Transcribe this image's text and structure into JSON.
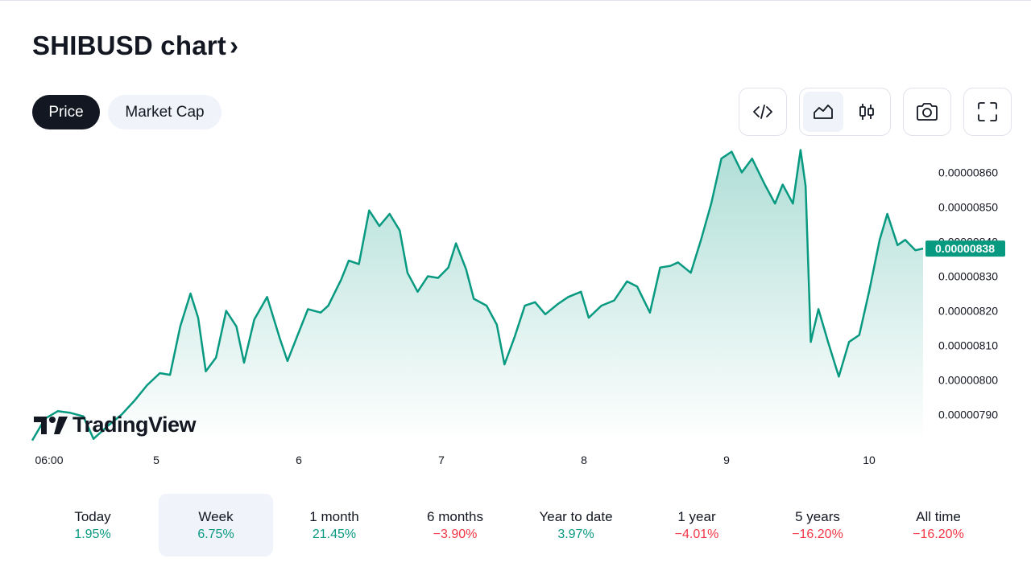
{
  "header": {
    "title": "SHIBUSD chart",
    "chevron": "›"
  },
  "tabs": [
    {
      "label": "Price",
      "active": true
    },
    {
      "label": "Market Cap",
      "active": false
    }
  ],
  "toolbar": {
    "embed_icon": "code-icon",
    "line_icon": "area-chart-icon",
    "candle_icon": "candlestick-icon",
    "snapshot_icon": "camera-icon",
    "fullscreen_icon": "fullscreen-icon"
  },
  "branding": {
    "logo_text": "TradingView"
  },
  "chart_data": {
    "type": "area",
    "x_ticks": [
      "06:00",
      "5",
      "6",
      "7",
      "8",
      "9",
      "10"
    ],
    "y_ticks": [
      "0.00000860",
      "0.00000850",
      "0.00000840",
      "0.00000830",
      "0.00000820",
      "0.00000810",
      "0.00000800",
      "0.00000790"
    ],
    "last_price_label": "0.00000838",
    "ylim": [
      7.82e-06,
      8.68e-06
    ],
    "colors": {
      "line": "#089981",
      "fill_top": "#089981",
      "label_bg": "#089981"
    },
    "series": [
      {
        "x": 0,
        "y": 7.825e-06
      },
      {
        "x": 0.5,
        "y": 7.888e-06
      },
      {
        "x": 1,
        "y": 7.91e-06
      },
      {
        "x": 1.5,
        "y": 7.905e-06
      },
      {
        "x": 2,
        "y": 7.895e-06
      },
      {
        "x": 2.4,
        "y": 7.83e-06
      },
      {
        "x": 3,
        "y": 7.87e-06
      },
      {
        "x": 3.5,
        "y": 7.9e-06
      },
      {
        "x": 4,
        "y": 7.94e-06
      },
      {
        "x": 4.5,
        "y": 7.985e-06
      },
      {
        "x": 5,
        "y": 8.02e-06
      },
      {
        "x": 5.4,
        "y": 8.015e-06
      },
      {
        "x": 5.8,
        "y": 8.155e-06
      },
      {
        "x": 6.2,
        "y": 8.25e-06
      },
      {
        "x": 6.5,
        "y": 8.18e-06
      },
      {
        "x": 6.8,
        "y": 8.025e-06
      },
      {
        "x": 7.2,
        "y": 8.065e-06
      },
      {
        "x": 7.6,
        "y": 8.2e-06
      },
      {
        "x": 8,
        "y": 8.155e-06
      },
      {
        "x": 8.3,
        "y": 8.05e-06
      },
      {
        "x": 8.7,
        "y": 8.175e-06
      },
      {
        "x": 9.2,
        "y": 8.24e-06
      },
      {
        "x": 9.7,
        "y": 8.12e-06
      },
      {
        "x": 10,
        "y": 8.055e-06
      },
      {
        "x": 10.4,
        "y": 8.13e-06
      },
      {
        "x": 10.8,
        "y": 8.205e-06
      },
      {
        "x": 11.3,
        "y": 8.195e-06
      },
      {
        "x": 11.6,
        "y": 8.215e-06
      },
      {
        "x": 12.1,
        "y": 8.29e-06
      },
      {
        "x": 12.4,
        "y": 8.345e-06
      },
      {
        "x": 12.8,
        "y": 8.335e-06
      },
      {
        "x": 13.2,
        "y": 8.49e-06
      },
      {
        "x": 13.6,
        "y": 8.445e-06
      },
      {
        "x": 14,
        "y": 8.48e-06
      },
      {
        "x": 14.4,
        "y": 8.432e-06
      },
      {
        "x": 14.7,
        "y": 8.31e-06
      },
      {
        "x": 15.1,
        "y": 8.255e-06
      },
      {
        "x": 15.5,
        "y": 8.3e-06
      },
      {
        "x": 15.9,
        "y": 8.295e-06
      },
      {
        "x": 16.3,
        "y": 8.325e-06
      },
      {
        "x": 16.6,
        "y": 8.395e-06
      },
      {
        "x": 17,
        "y": 8.32e-06
      },
      {
        "x": 17.3,
        "y": 8.235e-06
      },
      {
        "x": 17.8,
        "y": 8.215e-06
      },
      {
        "x": 18.2,
        "y": 8.16e-06
      },
      {
        "x": 18.5,
        "y": 8.045e-06
      },
      {
        "x": 18.9,
        "y": 8.125e-06
      },
      {
        "x": 19.3,
        "y": 8.215e-06
      },
      {
        "x": 19.7,
        "y": 8.225e-06
      },
      {
        "x": 20.1,
        "y": 8.19e-06
      },
      {
        "x": 20.6,
        "y": 8.22e-06
      },
      {
        "x": 21,
        "y": 8.24e-06
      },
      {
        "x": 21.5,
        "y": 8.255e-06
      },
      {
        "x": 21.8,
        "y": 8.18e-06
      },
      {
        "x": 22.3,
        "y": 8.215e-06
      },
      {
        "x": 22.8,
        "y": 8.23e-06
      },
      {
        "x": 23.3,
        "y": 8.285e-06
      },
      {
        "x": 23.7,
        "y": 8.27e-06
      },
      {
        "x": 24.2,
        "y": 8.195e-06
      },
      {
        "x": 24.6,
        "y": 8.325e-06
      },
      {
        "x": 25,
        "y": 8.33e-06
      },
      {
        "x": 25.3,
        "y": 8.34e-06
      },
      {
        "x": 25.8,
        "y": 8.31e-06
      },
      {
        "x": 26.2,
        "y": 8.405e-06
      },
      {
        "x": 26.6,
        "y": 8.51e-06
      },
      {
        "x": 27,
        "y": 8.64e-06
      },
      {
        "x": 27.4,
        "y": 8.66e-06
      },
      {
        "x": 27.8,
        "y": 8.6e-06
      },
      {
        "x": 28.2,
        "y": 8.64e-06
      },
      {
        "x": 28.7,
        "y": 8.565e-06
      },
      {
        "x": 29.1,
        "y": 8.51e-06
      },
      {
        "x": 29.4,
        "y": 8.565e-06
      },
      {
        "x": 29.8,
        "y": 8.51e-06
      },
      {
        "x": 30.1,
        "y": 8.665e-06
      },
      {
        "x": 30.3,
        "y": 8.56e-06
      },
      {
        "x": 30.5,
        "y": 8.11e-06
      },
      {
        "x": 30.8,
        "y": 8.205e-06
      },
      {
        "x": 31.2,
        "y": 8.105e-06
      },
      {
        "x": 31.6,
        "y": 8.01e-06
      },
      {
        "x": 32,
        "y": 8.11e-06
      },
      {
        "x": 32.4,
        "y": 8.13e-06
      },
      {
        "x": 32.8,
        "y": 8.26e-06
      },
      {
        "x": 33.2,
        "y": 8.405e-06
      },
      {
        "x": 33.5,
        "y": 8.48e-06
      },
      {
        "x": 33.9,
        "y": 8.39e-06
      },
      {
        "x": 34.2,
        "y": 8.405e-06
      },
      {
        "x": 34.6,
        "y": 8.375e-06
      },
      {
        "x": 34.9,
        "y": 8.38e-06
      }
    ]
  },
  "ranges": [
    {
      "label": "Today",
      "value": "1.95%",
      "trend": "pos",
      "selected": false
    },
    {
      "label": "Week",
      "value": "6.75%",
      "trend": "pos",
      "selected": true
    },
    {
      "label": "1 month",
      "value": "21.45%",
      "trend": "pos",
      "selected": false
    },
    {
      "label": "6 months",
      "value": "−3.90%",
      "trend": "neg",
      "selected": false
    },
    {
      "label": "Year to date",
      "value": "3.97%",
      "trend": "pos",
      "selected": false
    },
    {
      "label": "1 year",
      "value": "−4.01%",
      "trend": "neg",
      "selected": false
    },
    {
      "label": "5 years",
      "value": "−16.20%",
      "trend": "neg",
      "selected": false
    },
    {
      "label": "All time",
      "value": "−16.20%",
      "trend": "neg",
      "selected": false
    }
  ]
}
